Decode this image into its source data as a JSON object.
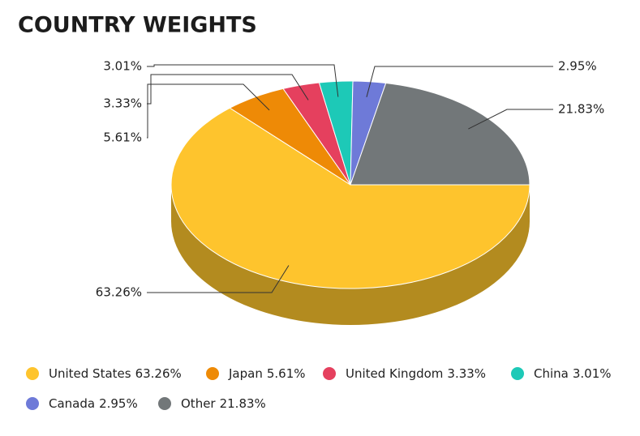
{
  "chart_data": {
    "type": "pie",
    "title": "COUNTRY WEIGHTS",
    "categories": [
      "United States",
      "Japan",
      "United Kingdom",
      "China",
      "Canada",
      "Other"
    ],
    "values": [
      63.26,
      5.61,
      3.33,
      3.01,
      2.95,
      21.83
    ],
    "value_labels": [
      "63.26%",
      "5.61%",
      "3.33%",
      "3.01%",
      "2.95%",
      "21.83%"
    ],
    "colors": [
      "#fec42d",
      "#ee8a06",
      "#e5405e",
      "#1dc9b7",
      "#6e7ad8",
      "#727779"
    ],
    "side_color": "#b38b1f",
    "legend": "bottom"
  }
}
